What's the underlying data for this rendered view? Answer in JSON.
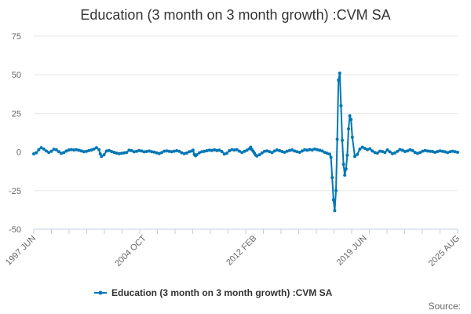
{
  "chart_data": {
    "type": "line",
    "title": "Education (3 month on 3 month growth) :CVM SA",
    "xlabel": "",
    "ylabel": "",
    "ylim": [
      -50,
      75
    ],
    "yticks": [
      -50,
      -25,
      0,
      25,
      50,
      75
    ],
    "x_start": "1997 JUN",
    "x_end": "2025 AUG",
    "xtick_labels": [
      "1997 JUN",
      "2004 OCT",
      "2012 FEB",
      "2019 JUN",
      "2025 AUG"
    ],
    "xtick_positions": [
      0,
      88,
      176,
      264,
      338
    ],
    "legend_position": "bottom",
    "grid": true,
    "source_label": "Source:",
    "colors": {
      "series": "#0077b5"
    },
    "series": [
      {
        "name": "Education (3 month on 3 month growth) :CVM SA",
        "points": [
          [
            0,
            -1.2
          ],
          [
            2,
            -0.5
          ],
          [
            4,
            1.5
          ],
          [
            6,
            2.8
          ],
          [
            8,
            1.9
          ],
          [
            10,
            0.6
          ],
          [
            12,
            -0.3
          ],
          [
            14,
            0.4
          ],
          [
            16,
            1.8
          ],
          [
            18,
            1.4
          ],
          [
            20,
            0.2
          ],
          [
            22,
            -0.9
          ],
          [
            24,
            -0.4
          ],
          [
            26,
            0.6
          ],
          [
            28,
            1.3
          ],
          [
            30,
            1.6
          ],
          [
            32,
            1.3
          ],
          [
            34,
            1.5
          ],
          [
            36,
            1.1
          ],
          [
            38,
            0.7
          ],
          [
            40,
            0.2
          ],
          [
            42,
            0.4
          ],
          [
            44,
            0.9
          ],
          [
            46,
            1.3
          ],
          [
            48,
            1.9
          ],
          [
            50,
            2.8
          ],
          [
            52,
            1.5
          ],
          [
            53,
            -1.2
          ],
          [
            54,
            -2.9
          ],
          [
            56,
            -1.9
          ],
          [
            58,
            0.6
          ],
          [
            60,
            0.9
          ],
          [
            62,
            0.3
          ],
          [
            64,
            -0.2
          ],
          [
            66,
            -0.7
          ],
          [
            68,
            -1.1
          ],
          [
            70,
            -0.9
          ],
          [
            72,
            -0.6
          ],
          [
            74,
            -0.3
          ],
          [
            76,
            1.1
          ],
          [
            78,
            0.9
          ],
          [
            80,
            0.1
          ],
          [
            82,
            0.4
          ],
          [
            84,
            0.9
          ],
          [
            86,
            0.6
          ],
          [
            88,
            0.1
          ],
          [
            90,
            0.3
          ],
          [
            92,
            0.6
          ],
          [
            94,
            0.2
          ],
          [
            96,
            -0.1
          ],
          [
            98,
            -0.6
          ],
          [
            100,
            -1.0
          ],
          [
            102,
            -0.4
          ],
          [
            104,
            0.5
          ],
          [
            106,
            0.7
          ],
          [
            108,
            0.4
          ],
          [
            110,
            0.2
          ],
          [
            112,
            0.5
          ],
          [
            114,
            0.8
          ],
          [
            116,
            0.4
          ],
          [
            118,
            -0.5
          ],
          [
            120,
            -1.1
          ],
          [
            122,
            -0.7
          ],
          [
            124,
            0.2
          ],
          [
            126,
            0.6
          ],
          [
            127,
            1.2
          ],
          [
            128,
            -1.6
          ],
          [
            129,
            -2.5
          ],
          [
            130,
            -1.8
          ],
          [
            132,
            -0.5
          ],
          [
            134,
            0.2
          ],
          [
            136,
            0.4
          ],
          [
            138,
            0.8
          ],
          [
            140,
            1.2
          ],
          [
            142,
            1.0
          ],
          [
            144,
            1.4
          ],
          [
            146,
            0.9
          ],
          [
            148,
            1.2
          ],
          [
            150,
            0.3
          ],
          [
            152,
            -1.3
          ],
          [
            154,
            -0.8
          ],
          [
            156,
            0.8
          ],
          [
            158,
            1.5
          ],
          [
            160,
            1.3
          ],
          [
            162,
            1.5
          ],
          [
            164,
            0.5
          ],
          [
            166,
            -0.3
          ],
          [
            168,
            0.4
          ],
          [
            170,
            1.2
          ],
          [
            172,
            2.1
          ],
          [
            173,
            3.1
          ],
          [
            174,
            1.5
          ],
          [
            175,
            0.4
          ],
          [
            176,
            -0.8
          ],
          [
            177,
            -2.1
          ],
          [
            178,
            -2.6
          ],
          [
            180,
            -1.8
          ],
          [
            182,
            -0.6
          ],
          [
            184,
            0.4
          ],
          [
            186,
            0.7
          ],
          [
            188,
            0.2
          ],
          [
            190,
            -0.4
          ],
          [
            192,
            0.6
          ],
          [
            194,
            1.3
          ],
          [
            196,
            0.8
          ],
          [
            198,
            0.3
          ],
          [
            200,
            -0.2
          ],
          [
            202,
            0.5
          ],
          [
            204,
            1.0
          ],
          [
            206,
            1.3
          ],
          [
            208,
            0.6
          ],
          [
            210,
            0.2
          ],
          [
            212,
            -0.2
          ],
          [
            214,
            0.6
          ],
          [
            216,
            1.4
          ],
          [
            218,
            1.2
          ],
          [
            220,
            1.6
          ],
          [
            222,
            1.3
          ],
          [
            224,
            1.9
          ],
          [
            226,
            1.5
          ],
          [
            228,
            1.1
          ],
          [
            230,
            0.6
          ],
          [
            232,
            -0.3
          ],
          [
            234,
            -0.8
          ],
          [
            236,
            -1.4
          ],
          [
            237,
            -3.5
          ],
          [
            238,
            -16.5
          ],
          [
            239,
            -31
          ],
          [
            240,
            -38
          ],
          [
            241,
            -25
          ],
          [
            242,
            8.2
          ],
          [
            243,
            46.5
          ],
          [
            244,
            51
          ],
          [
            245,
            30
          ],
          [
            246,
            7.5
          ],
          [
            247,
            -8
          ],
          [
            248,
            -15
          ],
          [
            249,
            -11
          ],
          [
            250,
            -2.1
          ],
          [
            251,
            15
          ],
          [
            252,
            23.5
          ],
          [
            253,
            21
          ],
          [
            254,
            9.5
          ],
          [
            256,
            -2.9
          ],
          [
            258,
            -1.6
          ],
          [
            260,
            1.9
          ],
          [
            262,
            3.1
          ],
          [
            264,
            2.3
          ],
          [
            266,
            1.6
          ],
          [
            268,
            2.1
          ],
          [
            270,
            0.6
          ],
          [
            272,
            -0.4
          ],
          [
            274,
            -0.7
          ],
          [
            276,
            0.5
          ],
          [
            278,
            0.3
          ],
          [
            280,
            -0.3
          ],
          [
            282,
            1.3
          ],
          [
            284,
            0.1
          ],
          [
            286,
            -1.1
          ],
          [
            288,
            -0.6
          ],
          [
            290,
            0.4
          ],
          [
            292,
            1.6
          ],
          [
            294,
            1.1
          ],
          [
            296,
            0.3
          ],
          [
            298,
            0.7
          ],
          [
            300,
            1.4
          ],
          [
            302,
            0.9
          ],
          [
            304,
            -0.3
          ],
          [
            306,
            -0.9
          ],
          [
            308,
            -0.4
          ],
          [
            310,
            0.5
          ],
          [
            312,
            0.9
          ],
          [
            314,
            0.6
          ],
          [
            316,
            0.4
          ],
          [
            318,
            0.3
          ],
          [
            320,
            -0.2
          ],
          [
            322,
            0.3
          ],
          [
            324,
            0.7
          ],
          [
            326,
            0.4
          ],
          [
            328,
            0.1
          ],
          [
            330,
            -0.4
          ],
          [
            332,
            0.2
          ],
          [
            334,
            0.5
          ],
          [
            336,
            0.2
          ],
          [
            338,
            -0.2
          ]
        ]
      }
    ]
  }
}
